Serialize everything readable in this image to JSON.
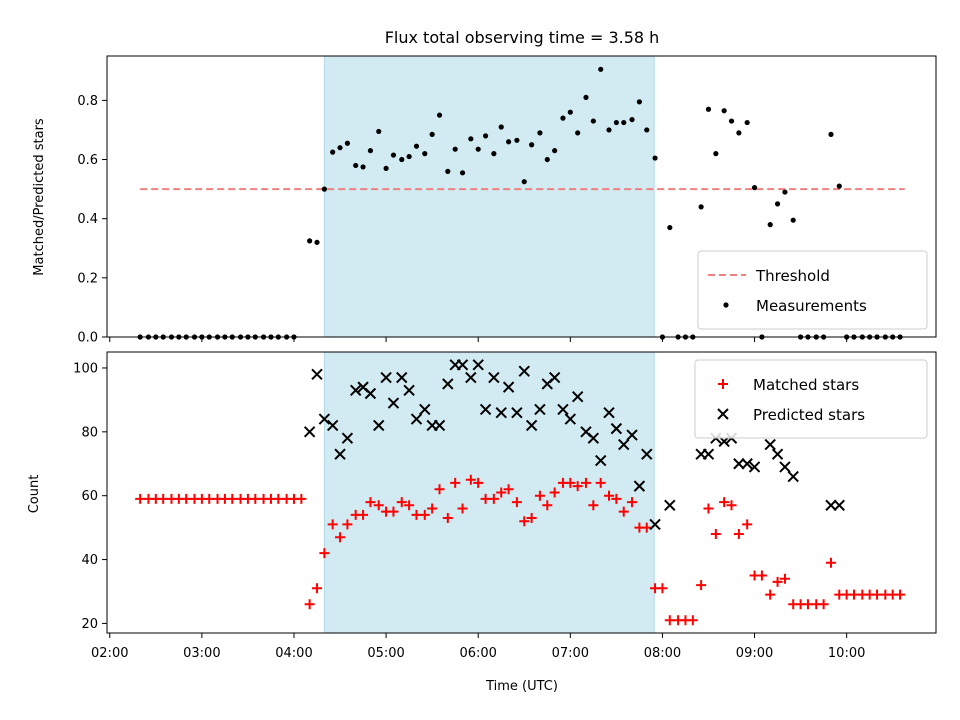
{
  "figure": {
    "title": "Flux total observing time = 3.58 h",
    "xlabel": "Time (UTC)",
    "xticks": [
      2.0,
      3.0,
      4.0,
      5.0,
      6.0,
      7.0,
      8.0,
      9.0,
      10.0
    ],
    "xtick_labels": [
      "02:00",
      "03:00",
      "04:00",
      "05:00",
      "06:00",
      "07:00",
      "08:00",
      "09:00",
      "10:00"
    ],
    "xlim": [
      1.97,
      10.97
    ],
    "shaded_interval": [
      4.33,
      7.91
    ],
    "shade_color": "#add8e6"
  },
  "chart_data": [
    {
      "type": "scatter",
      "panel": "top",
      "ylabel": "Matched/Predicted stars",
      "ylim": [
        0,
        0.95
      ],
      "yticks": [
        0.0,
        0.2,
        0.4,
        0.6,
        0.8
      ],
      "ytick_labels": [
        "0.0",
        "0.2",
        "0.4",
        "0.6",
        "0.8"
      ],
      "legend_position": "bottom-right",
      "threshold": {
        "name": "Threshold",
        "y": 0.5,
        "x_range": [
          2.33,
          10.63
        ],
        "color": "#f08080",
        "style": "dashed"
      },
      "series": [
        {
          "name": "Measurements",
          "marker": "dot",
          "color": "#000000",
          "points": [
            [
              2.33,
              0.0
            ],
            [
              2.42,
              0.0
            ],
            [
              2.5,
              0.0
            ],
            [
              2.58,
              0.0
            ],
            [
              2.67,
              0.0
            ],
            [
              2.75,
              0.0
            ],
            [
              2.83,
              0.0
            ],
            [
              2.92,
              0.0
            ],
            [
              3.0,
              0.0
            ],
            [
              3.08,
              0.0
            ],
            [
              3.17,
              0.0
            ],
            [
              3.25,
              0.0
            ],
            [
              3.33,
              0.0
            ],
            [
              3.42,
              0.0
            ],
            [
              3.5,
              0.0
            ],
            [
              3.58,
              0.0
            ],
            [
              3.67,
              0.0
            ],
            [
              3.75,
              0.0
            ],
            [
              3.83,
              0.0
            ],
            [
              3.92,
              0.0
            ],
            [
              4.0,
              0.0
            ],
            [
              4.17,
              0.325
            ],
            [
              4.25,
              0.32
            ],
            [
              4.33,
              0.5
            ],
            [
              4.42,
              0.625
            ],
            [
              4.5,
              0.64
            ],
            [
              4.58,
              0.655
            ],
            [
              4.67,
              0.58
            ],
            [
              4.75,
              0.575
            ],
            [
              4.83,
              0.63
            ],
            [
              4.92,
              0.695
            ],
            [
              5.0,
              0.57
            ],
            [
              5.08,
              0.615
            ],
            [
              5.17,
              0.6
            ],
            [
              5.25,
              0.61
            ],
            [
              5.33,
              0.645
            ],
            [
              5.42,
              0.62
            ],
            [
              5.5,
              0.685
            ],
            [
              5.58,
              0.75
            ],
            [
              5.67,
              0.56
            ],
            [
              5.75,
              0.635
            ],
            [
              5.83,
              0.555
            ],
            [
              5.92,
              0.67
            ],
            [
              6.0,
              0.635
            ],
            [
              6.08,
              0.68
            ],
            [
              6.17,
              0.62
            ],
            [
              6.25,
              0.71
            ],
            [
              6.33,
              0.66
            ],
            [
              6.42,
              0.665
            ],
            [
              6.5,
              0.525
            ],
            [
              6.58,
              0.65
            ],
            [
              6.67,
              0.69
            ],
            [
              6.75,
              0.6
            ],
            [
              6.83,
              0.63
            ],
            [
              6.92,
              0.74
            ],
            [
              7.0,
              0.76
            ],
            [
              7.08,
              0.69
            ],
            [
              7.17,
              0.81
            ],
            [
              7.25,
              0.73
            ],
            [
              7.33,
              0.905
            ],
            [
              7.42,
              0.7
            ],
            [
              7.5,
              0.725
            ],
            [
              7.58,
              0.725
            ],
            [
              7.67,
              0.735
            ],
            [
              7.75,
              0.795
            ],
            [
              7.83,
              0.7
            ],
            [
              7.92,
              0.605
            ],
            [
              8.0,
              0.0
            ],
            [
              8.08,
              0.37
            ],
            [
              8.17,
              0.0
            ],
            [
              8.25,
              0.0
            ],
            [
              8.33,
              0.0
            ],
            [
              8.42,
              0.44
            ],
            [
              8.5,
              0.77
            ],
            [
              8.58,
              0.62
            ],
            [
              8.67,
              0.765
            ],
            [
              8.75,
              0.73
            ],
            [
              8.83,
              0.69
            ],
            [
              8.92,
              0.725
            ],
            [
              9.0,
              0.505
            ],
            [
              9.08,
              0.0
            ],
            [
              9.17,
              0.38
            ],
            [
              9.25,
              0.45
            ],
            [
              9.33,
              0.49
            ],
            [
              9.42,
              0.395
            ],
            [
              9.5,
              0.0
            ],
            [
              9.58,
              0.0
            ],
            [
              9.67,
              0.0
            ],
            [
              9.75,
              0.0
            ],
            [
              9.83,
              0.685
            ],
            [
              9.92,
              0.51
            ],
            [
              10.0,
              0.0
            ],
            [
              10.08,
              0.0
            ],
            [
              10.17,
              0.0
            ],
            [
              10.25,
              0.0
            ],
            [
              10.33,
              0.0
            ],
            [
              10.42,
              0.0
            ],
            [
              10.5,
              0.0
            ],
            [
              10.58,
              0.0
            ]
          ]
        }
      ]
    },
    {
      "type": "scatter",
      "panel": "bottom",
      "ylabel": "Count",
      "ylim": [
        17,
        105
      ],
      "yticks": [
        20,
        40,
        60,
        80,
        100
      ],
      "ytick_labels": [
        "20",
        "40",
        "60",
        "80",
        "100"
      ],
      "legend_position": "top-right",
      "series": [
        {
          "name": "Matched stars",
          "marker": "plus",
          "color": "#ff0000",
          "points": [
            [
              2.33,
              59
            ],
            [
              2.42,
              59
            ],
            [
              2.5,
              59
            ],
            [
              2.58,
              59
            ],
            [
              2.67,
              59
            ],
            [
              2.75,
              59
            ],
            [
              2.83,
              59
            ],
            [
              2.92,
              59
            ],
            [
              3.0,
              59
            ],
            [
              3.08,
              59
            ],
            [
              3.17,
              59
            ],
            [
              3.25,
              59
            ],
            [
              3.33,
              59
            ],
            [
              3.42,
              59
            ],
            [
              3.5,
              59
            ],
            [
              3.58,
              59
            ],
            [
              3.67,
              59
            ],
            [
              3.75,
              59
            ],
            [
              3.83,
              59
            ],
            [
              3.92,
              59
            ],
            [
              4.0,
              59
            ],
            [
              4.08,
              59
            ],
            [
              4.17,
              26
            ],
            [
              4.25,
              31
            ],
            [
              4.33,
              42
            ],
            [
              4.42,
              51
            ],
            [
              4.5,
              47
            ],
            [
              4.58,
              51
            ],
            [
              4.67,
              54
            ],
            [
              4.75,
              54
            ],
            [
              4.83,
              58
            ],
            [
              4.92,
              57
            ],
            [
              5.0,
              55
            ],
            [
              5.08,
              55
            ],
            [
              5.17,
              58
            ],
            [
              5.25,
              57
            ],
            [
              5.33,
              54
            ],
            [
              5.42,
              54
            ],
            [
              5.5,
              56
            ],
            [
              5.58,
              62
            ],
            [
              5.67,
              53
            ],
            [
              5.75,
              64
            ],
            [
              5.83,
              56
            ],
            [
              5.92,
              65
            ],
            [
              6.0,
              64
            ],
            [
              6.08,
              59
            ],
            [
              6.17,
              59
            ],
            [
              6.25,
              61
            ],
            [
              6.33,
              62
            ],
            [
              6.42,
              58
            ],
            [
              6.5,
              52
            ],
            [
              6.58,
              53
            ],
            [
              6.67,
              60
            ],
            [
              6.75,
              57
            ],
            [
              6.83,
              61
            ],
            [
              6.92,
              64
            ],
            [
              7.0,
              64
            ],
            [
              7.08,
              63
            ],
            [
              7.17,
              64
            ],
            [
              7.25,
              57
            ],
            [
              7.33,
              64
            ],
            [
              7.42,
              60
            ],
            [
              7.5,
              59
            ],
            [
              7.58,
              55
            ],
            [
              7.67,
              58
            ],
            [
              7.75,
              50
            ],
            [
              7.83,
              50
            ],
            [
              7.92,
              31
            ],
            [
              8.0,
              31
            ],
            [
              8.08,
              21
            ],
            [
              8.17,
              21
            ],
            [
              8.25,
              21
            ],
            [
              8.33,
              21
            ],
            [
              8.42,
              32
            ],
            [
              8.5,
              56
            ],
            [
              8.58,
              48
            ],
            [
              8.67,
              58
            ],
            [
              8.75,
              57
            ],
            [
              8.83,
              48
            ],
            [
              8.92,
              51
            ],
            [
              9.0,
              35
            ],
            [
              9.08,
              35
            ],
            [
              9.17,
              29
            ],
            [
              9.25,
              33
            ],
            [
              9.33,
              34
            ],
            [
              9.42,
              26
            ],
            [
              9.5,
              26
            ],
            [
              9.58,
              26
            ],
            [
              9.67,
              26
            ],
            [
              9.75,
              26
            ],
            [
              9.83,
              39
            ],
            [
              9.92,
              29
            ],
            [
              10.0,
              29
            ],
            [
              10.08,
              29
            ],
            [
              10.17,
              29
            ],
            [
              10.25,
              29
            ],
            [
              10.33,
              29
            ],
            [
              10.42,
              29
            ],
            [
              10.5,
              29
            ],
            [
              10.58,
              29
            ]
          ]
        },
        {
          "name": "Predicted stars",
          "marker": "x",
          "color": "#000000",
          "points": [
            [
              4.17,
              80
            ],
            [
              4.25,
              98
            ],
            [
              4.33,
              84
            ],
            [
              4.42,
              82
            ],
            [
              4.5,
              73
            ],
            [
              4.58,
              78
            ],
            [
              4.67,
              93
            ],
            [
              4.75,
              94
            ],
            [
              4.83,
              92
            ],
            [
              4.92,
              82
            ],
            [
              5.0,
              97
            ],
            [
              5.08,
              89
            ],
            [
              5.17,
              97
            ],
            [
              5.25,
              93
            ],
            [
              5.33,
              84
            ],
            [
              5.42,
              87
            ],
            [
              5.5,
              82
            ],
            [
              5.58,
              82
            ],
            [
              5.67,
              95
            ],
            [
              5.75,
              101
            ],
            [
              5.83,
              101
            ],
            [
              5.92,
              97
            ],
            [
              6.0,
              101
            ],
            [
              6.08,
              87
            ],
            [
              6.17,
              97
            ],
            [
              6.25,
              86
            ],
            [
              6.33,
              94
            ],
            [
              6.42,
              86
            ],
            [
              6.5,
              99
            ],
            [
              6.58,
              82
            ],
            [
              6.67,
              87
            ],
            [
              6.75,
              95
            ],
            [
              6.83,
              97
            ],
            [
              6.92,
              87
            ],
            [
              7.0,
              84
            ],
            [
              7.08,
              91
            ],
            [
              7.17,
              80
            ],
            [
              7.25,
              78
            ],
            [
              7.33,
              71
            ],
            [
              7.42,
              86
            ],
            [
              7.5,
              81
            ],
            [
              7.58,
              76
            ],
            [
              7.67,
              79
            ],
            [
              7.75,
              63
            ],
            [
              7.83,
              73
            ],
            [
              7.92,
              51
            ],
            [
              8.08,
              57
            ],
            [
              8.42,
              73
            ],
            [
              8.5,
              73
            ],
            [
              8.58,
              78
            ],
            [
              8.67,
              77
            ],
            [
              8.75,
              78
            ],
            [
              8.83,
              70
            ],
            [
              8.92,
              70
            ],
            [
              9.0,
              69
            ],
            [
              9.17,
              76
            ],
            [
              9.25,
              73
            ],
            [
              9.33,
              69
            ],
            [
              9.42,
              66
            ],
            [
              9.83,
              57
            ],
            [
              9.92,
              57
            ]
          ]
        }
      ]
    }
  ]
}
